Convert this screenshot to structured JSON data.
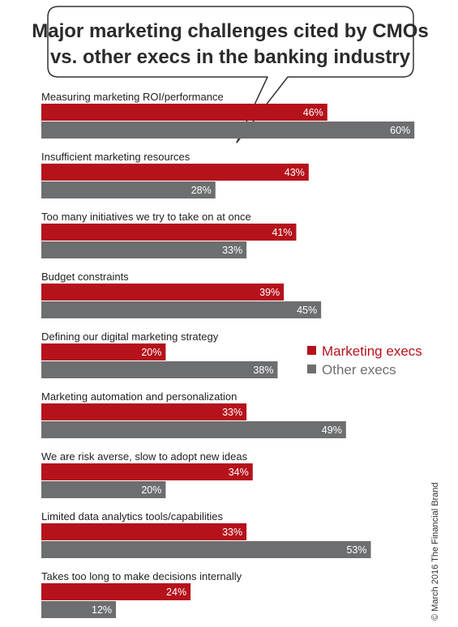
{
  "chart_data": {
    "type": "bar",
    "orientation": "horizontal",
    "title_lines": [
      "Major marketing challenges cited by CMOs",
      "vs. other execs in the banking industry"
    ],
    "categories": [
      "Measuring marketing ROI/performance",
      "Insufficient marketing resources",
      "Too many initiatives we try to take on at once",
      "Budget constraints",
      "Defining our digital marketing strategy",
      "Marketing automation and personalization",
      "We are risk averse, slow to adopt new ideas",
      "Limited data analytics tools/capabilities",
      "Takes too long to make decisions internally"
    ],
    "series": [
      {
        "name": "Marketing execs",
        "color": "#b5121b",
        "values": [
          46,
          43,
          41,
          39,
          20,
          33,
          34,
          33,
          24
        ]
      },
      {
        "name": "Other execs",
        "color": "#6d6e70",
        "values": [
          60,
          28,
          33,
          45,
          38,
          49,
          20,
          53,
          12
        ]
      }
    ],
    "value_suffix": "%",
    "xlim": [
      0,
      60
    ],
    "legend_position": "right",
    "grid": false
  },
  "credit": "© March 2016 The Financial Brand"
}
